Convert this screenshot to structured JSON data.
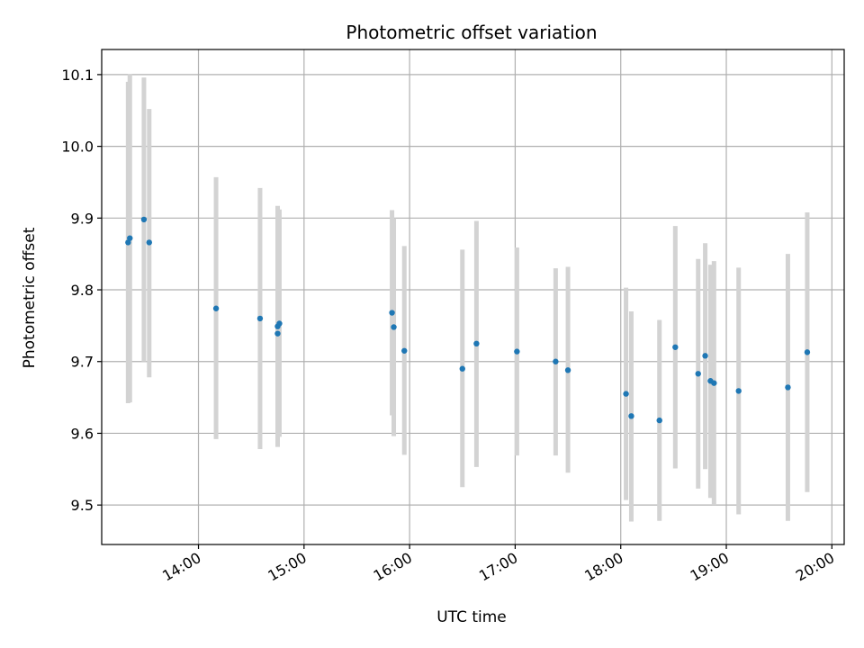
{
  "chart_data": {
    "type": "scatter",
    "title": "Photometric offset variation",
    "xlabel": "UTC time",
    "ylabel": "Photometric offset",
    "x_tick_labels": [
      "14:00",
      "15:00",
      "16:00",
      "17:00",
      "18:00",
      "19:00",
      "20:00"
    ],
    "y_tick_labels": [
      "9.5",
      "9.6",
      "9.7",
      "9.8",
      "9.9",
      "10.0",
      "10.1"
    ],
    "y_ticks": [
      9.5,
      9.6,
      9.7,
      9.8,
      9.9,
      10.0,
      10.1
    ],
    "xlim": [
      "13:05",
      "20:07"
    ],
    "ylim": [
      9.445,
      10.135
    ],
    "grid": true,
    "colors": {
      "point": "#1f77b4",
      "errorbar": "#d3d3d3",
      "grid": "#b0b0b0"
    },
    "points": [
      {
        "x": "13:20",
        "y": 9.866,
        "err_low": 9.642,
        "err_high": 10.09
      },
      {
        "x": "13:21",
        "y": 9.872,
        "err_low": 9.643,
        "err_high": 10.101
      },
      {
        "x": "13:29",
        "y": 9.898,
        "err_low": 9.7,
        "err_high": 10.096
      },
      {
        "x": "13:32",
        "y": 9.866,
        "err_low": 9.678,
        "err_high": 10.052
      },
      {
        "x": "14:10",
        "y": 9.774,
        "err_low": 9.592,
        "err_high": 9.957
      },
      {
        "x": "14:35",
        "y": 9.76,
        "err_low": 9.578,
        "err_high": 9.942
      },
      {
        "x": "14:45",
        "y": 9.739,
        "err_low": 9.581,
        "err_high": 9.917
      },
      {
        "x": "14:45",
        "y": 9.749,
        "err_low": 9.585,
        "err_high": 9.91
      },
      {
        "x": "14:46",
        "y": 9.753,
        "err_low": 9.595,
        "err_high": 9.912
      },
      {
        "x": "15:50",
        "y": 9.768,
        "err_low": 9.625,
        "err_high": 9.911
      },
      {
        "x": "15:51",
        "y": 9.748,
        "err_low": 9.596,
        "err_high": 9.9
      },
      {
        "x": "15:57",
        "y": 9.715,
        "err_low": 9.57,
        "err_high": 9.861
      },
      {
        "x": "16:30",
        "y": 9.69,
        "err_low": 9.525,
        "err_high": 9.856
      },
      {
        "x": "16:38",
        "y": 9.725,
        "err_low": 9.553,
        "err_high": 9.896
      },
      {
        "x": "17:01",
        "y": 9.714,
        "err_low": 9.569,
        "err_high": 9.859
      },
      {
        "x": "17:23",
        "y": 9.7,
        "err_low": 9.569,
        "err_high": 9.83
      },
      {
        "x": "17:30",
        "y": 9.688,
        "err_low": 9.545,
        "err_high": 9.832
      },
      {
        "x": "18:03",
        "y": 9.655,
        "err_low": 9.507,
        "err_high": 9.803
      },
      {
        "x": "18:06",
        "y": 9.624,
        "err_low": 9.477,
        "err_high": 9.77
      },
      {
        "x": "18:22",
        "y": 9.618,
        "err_low": 9.478,
        "err_high": 9.758
      },
      {
        "x": "18:31",
        "y": 9.72,
        "err_low": 9.551,
        "err_high": 9.889
      },
      {
        "x": "18:44",
        "y": 9.683,
        "err_low": 9.523,
        "err_high": 9.843
      },
      {
        "x": "18:48",
        "y": 9.708,
        "err_low": 9.55,
        "err_high": 9.865
      },
      {
        "x": "18:51",
        "y": 9.673,
        "err_low": 9.51,
        "err_high": 9.835
      },
      {
        "x": "18:53",
        "y": 9.67,
        "err_low": 9.5,
        "err_high": 9.84
      },
      {
        "x": "19:07",
        "y": 9.659,
        "err_low": 9.487,
        "err_high": 9.831
      },
      {
        "x": "19:35",
        "y": 9.664,
        "err_low": 9.478,
        "err_high": 9.85
      },
      {
        "x": "19:46",
        "y": 9.713,
        "err_low": 9.518,
        "err_high": 9.908
      }
    ]
  }
}
